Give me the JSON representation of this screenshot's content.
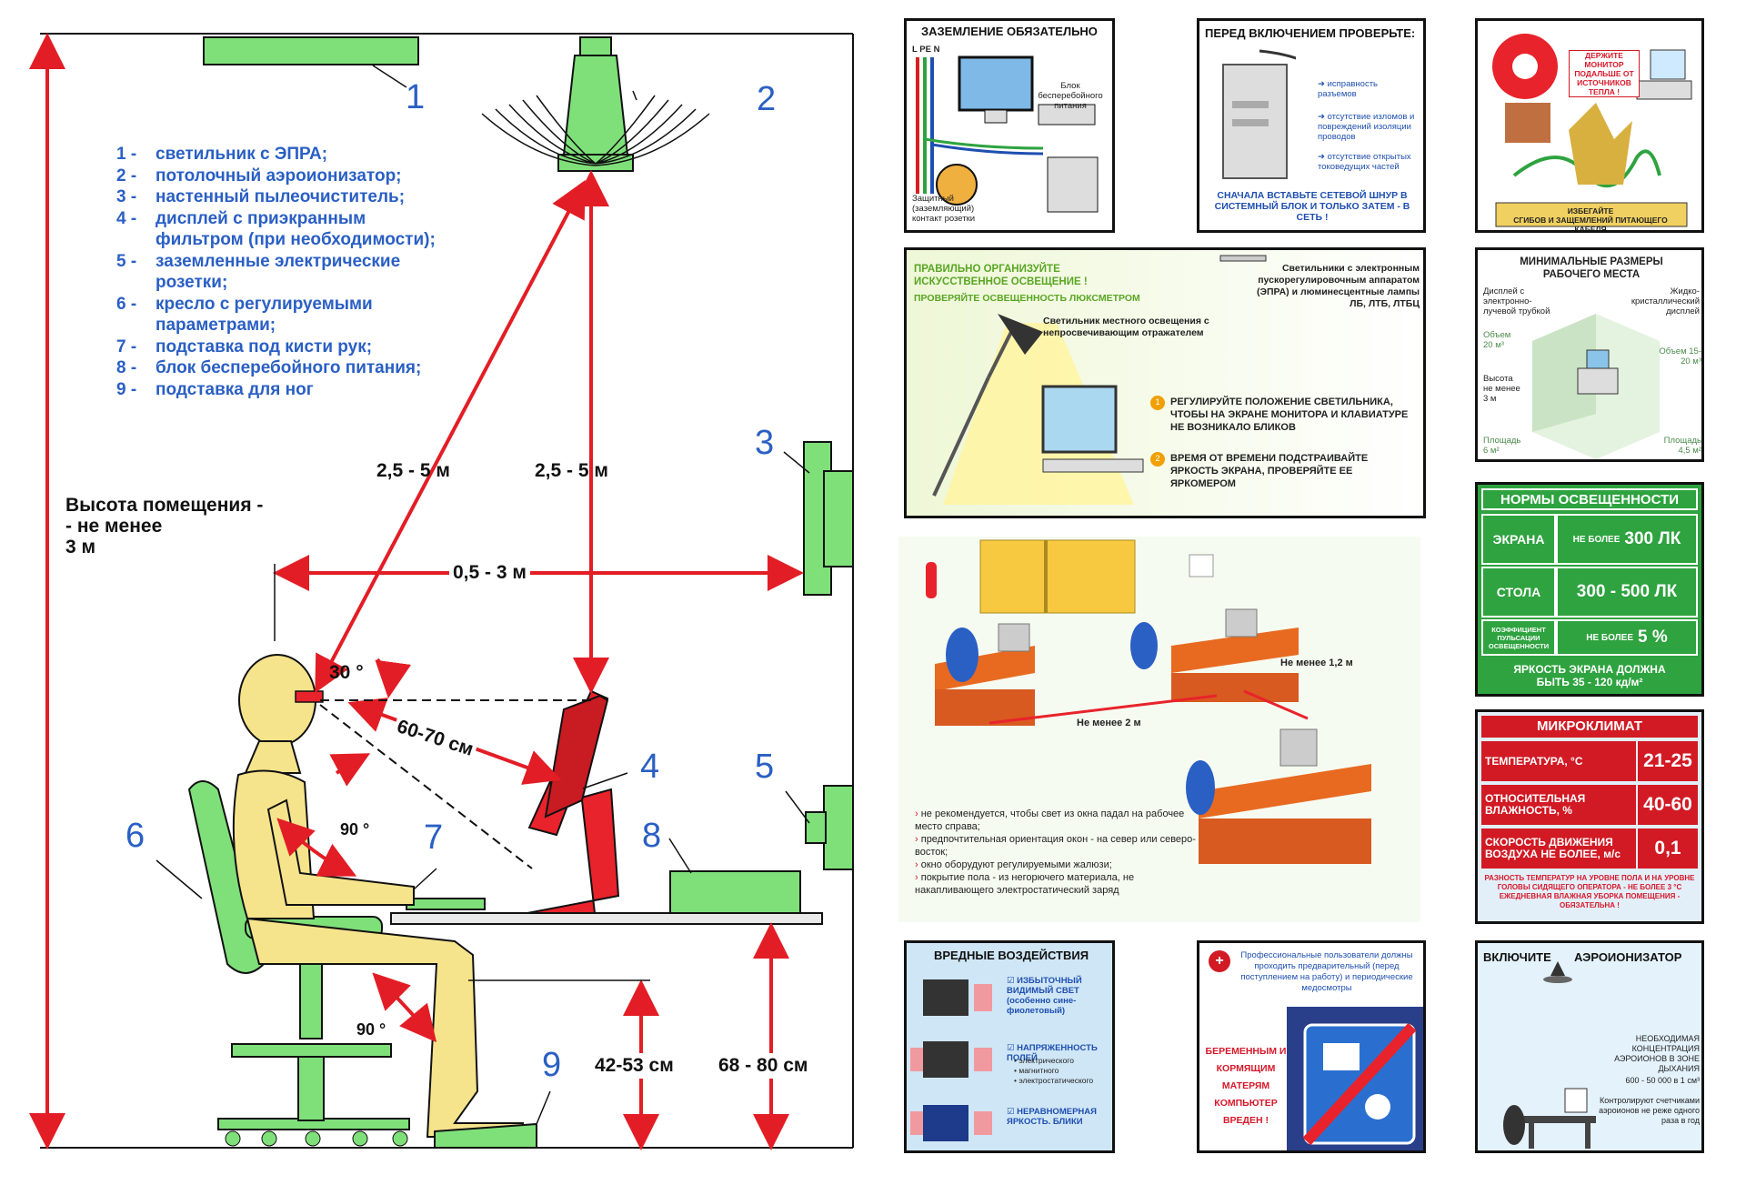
{
  "main_diagram": {
    "legend": [
      {
        "num": "1 -",
        "text": "светильник с ЭПРА;"
      },
      {
        "num": "2 -",
        "text": "потолочный аэроионизатор;"
      },
      {
        "num": "3 -",
        "text": "настенный пылеочиститель;"
      },
      {
        "num": "4 -",
        "text": "дисплей с приэкранным"
      },
      {
        "num": "",
        "text": "фильтром (при необходимости);"
      },
      {
        "num": "5 -",
        "text": "заземленные электрические"
      },
      {
        "num": "",
        "text": "розетки;"
      },
      {
        "num": "6 -",
        "text": "кресло с регулируемыми"
      },
      {
        "num": "",
        "text": "параметрами;"
      },
      {
        "num": "7 -",
        "text": "подставка под кисти рук;"
      },
      {
        "num": "8 -",
        "text": "блок бесперебойного питания;"
      },
      {
        "num": "9 -",
        "text": "подставка для ног"
      }
    ],
    "numbers": {
      "n1": "1",
      "n2": "2",
      "n3": "3",
      "n4": "4",
      "n5": "5",
      "n6": "6",
      "n7": "7",
      "n8": "8",
      "n9": "9"
    },
    "room_height_line1": "Высота помещения -",
    "room_height_line2": "- не менее",
    "room_height_line3": "3 м",
    "dim_diag_left": "2,5 - 5 м",
    "dim_diag_right": "2,5 - 5 м",
    "dim_wall": "0,5 - 3 м",
    "angle_top": "30 °",
    "dim_eye": "60-70 см",
    "angle_elbow": "90 °",
    "angle_knee": "90 °",
    "dim_seat": "42-53 см",
    "dim_desk": "68 - 80 см"
  },
  "panel_grounding": {
    "title": "ЗАЗЕМЛЕНИЕ ОБЯЗАТЕЛЬНО",
    "wires": "L PE N",
    "ups_label": "Блок бесперебойного питания",
    "socket_label": "Защитный (заземляющий) контакт розетки"
  },
  "panel_check": {
    "title": "ПЕРЕД ВКЛЮЧЕНИЕМ ПРОВЕРЬТЕ:",
    "items": [
      "исправность разъемов",
      "отсутствие изломов и повреждений изоляции проводов",
      "отсутствие открытых токоведущих частей"
    ],
    "bottom": "СНАЧАЛА ВСТАВЬТЕ СЕТЕВОЙ ШНУР В СИСТЕМНЫЙ БЛОК И ТОЛЬКО ЗАТЕМ - В СЕТЬ !"
  },
  "panel_heat": {
    "sign": "ДЕРЖИТЕ МОНИТОР ПОДАЛЬШЕ ОТ ИСТОЧНИКОВ ТЕПЛА !",
    "bottom_line1": "ИЗБЕГАЙТЕ",
    "bottom_line2": "СГИБОВ И ЗАЩЕМЛЕНИЙ ПИТАЮЩЕГО КАБЕЛЯ"
  },
  "panel_light": {
    "title_line1": "ПРАВИЛЬНО ОРГАНИЗУЙТЕ",
    "title_line2": "ИСКУССТВЕННОЕ ОСВЕЩЕНИЕ !",
    "subtitle": "ПРОВЕРЯЙТЕ ОСВЕЩЕННОСТЬ ЛЮКСМЕТРОМ",
    "lamp_note": "Светильник местного освещения с непросвечивающим отражателем",
    "ceiling_note": "Светильники с электронным пускорегулировочным аппаратом (ЭПРА) и люминесцентные лампы ЛБ, ЛТБ, ЛТБЦ",
    "tip1": "РЕГУЛИРУЙТЕ ПОЛОЖЕНИЕ СВЕТИЛЬНИКА, ЧТОБЫ НА ЭКРАНЕ МОНИТОРА И КЛАВИАТУРЕ НЕ ВОЗНИКАЛО БЛИКОВ",
    "tip2": "ВРЕМЯ ОТ ВРЕМЕНИ ПОДСТРАИВАЙТЕ ЯРКОСТЬ ЭКРАНА, ПРОВЕРЯЙТЕ ЕЕ ЯРКОМЕРОМ",
    "c1": "1",
    "c2": "2"
  },
  "panel_size": {
    "title_line1": "МИНИМАЛЬНЫЕ РАЗМЕРЫ",
    "title_line2": "РАБОЧЕГО МЕСТА",
    "crt": "Дисплей с электронно-лучевой трубкой",
    "lcd": "Жидко-кристаллический дисплей",
    "vol_left": "Объем 20 м³",
    "vol_right": "Объем 15-20 м³",
    "height": "Высота не менее 3 м",
    "area_left": "Площадь 6 м²",
    "area_right": "Площадь 4,5 м²"
  },
  "panel_norms": {
    "title": "НОРМЫ ОСВЕЩЕННОСТИ",
    "r1_label": "ЭКРАНА",
    "r1_value_prefix": "НЕ БОЛЕЕ",
    "r1_value": "300 ЛК",
    "r2_label": "СТОЛА",
    "r2_value": "300 - 500 ЛК",
    "r3_label": "КОЭФФИЦИЕНТ ПУЛЬСАЦИИ ОСВЕЩЕННОСТИ",
    "r3_value_prefix": "НЕ БОЛЕЕ",
    "r3_value": "5 %",
    "bottom_line1": "ЯРКОСТЬ ЭКРАНА ДОЛЖНА",
    "bottom_line2": "БЫТЬ 35 - 120 кд/м²"
  },
  "panel_office": {
    "dist1": "Не менее 1,2 м",
    "dist2": "Не менее 2 м",
    "notes": [
      "не рекомендуется, чтобы свет из окна падал на рабочее место справа;",
      "предпочтительная ориентация окон - на север или северо-восток;",
      "окно оборудуют регулируемыми жалюзи;",
      "покрытие пола - из негорючего материала, не накапливающего электростатический заряд"
    ]
  },
  "panel_micro": {
    "title": "МИКРОКЛИМАТ",
    "temp_label": "ТЕМПЕРАТУРА, °С",
    "temp_value": "21-25",
    "hum_label": "ОТНОСИТЕЛЬНАЯ ВЛАЖНОСТЬ, %",
    "hum_value": "40-60",
    "speed_label": "СКОРОСТЬ ДВИЖЕНИЯ ВОЗДУХА НЕ БОЛЕЕ, м/с",
    "speed_value": "0,1",
    "note": "РАЗНОСТЬ ТЕМПЕРАТУР НА УРОВНЕ ПОЛА И НА УРОВНЕ ГОЛОВЫ СИДЯЩЕГО ОПЕРАТОРА - НЕ БОЛЕЕ 3 °С ЕЖЕДНЕВНАЯ ВЛАЖНАЯ УБОРКА ПОМЕЩЕНИЯ - ОБЯЗАТЕЛЬНА !"
  },
  "panel_harm": {
    "title": "ВРЕДНЫЕ ВОЗДЕЙСТВИЯ",
    "i1": "ИЗБЫТОЧНЫЙ ВИДИМЫЙ СВЕТ (особенно сине-фиолетовый)",
    "i2": "НАПРЯЖЕННОСТЬ ПОЛЕЙ",
    "i2_sub": [
      "электрического",
      "магнитного",
      "электростатического"
    ],
    "i3": "НЕРАВНОМЕРНАЯ ЯРКОСТЬ. БЛИКИ"
  },
  "panel_medical": {
    "top": "Профессиональные пользователи должны проходить предварительный (перед поступлением на работу) и периодические медосмотры",
    "warning": "БЕРЕМЕННЫМ И КОРМЯЩИМ МАТЕРЯМ КОМПЬЮТЕР ВРЕДЕН !"
  },
  "panel_ion": {
    "title_left": "ВКЛЮЧИТЕ",
    "title_right": "АЭРОИОНИЗАТОР",
    "conc": "НЕОБХОДИМАЯ КОНЦЕНТРАЦИЯ АЭРОИОНОВ В ЗОНЕ ДЫХАНИЯ",
    "conc_value": "600 - 50 000 в 1 см³",
    "control": "Контролируют счетчиками аэроионов не реже одного раза в год"
  },
  "colors": {
    "green": "#7fe07a",
    "red": "#e8232b",
    "blue": "#2a5fc4",
    "skin": "#f6e48c"
  }
}
